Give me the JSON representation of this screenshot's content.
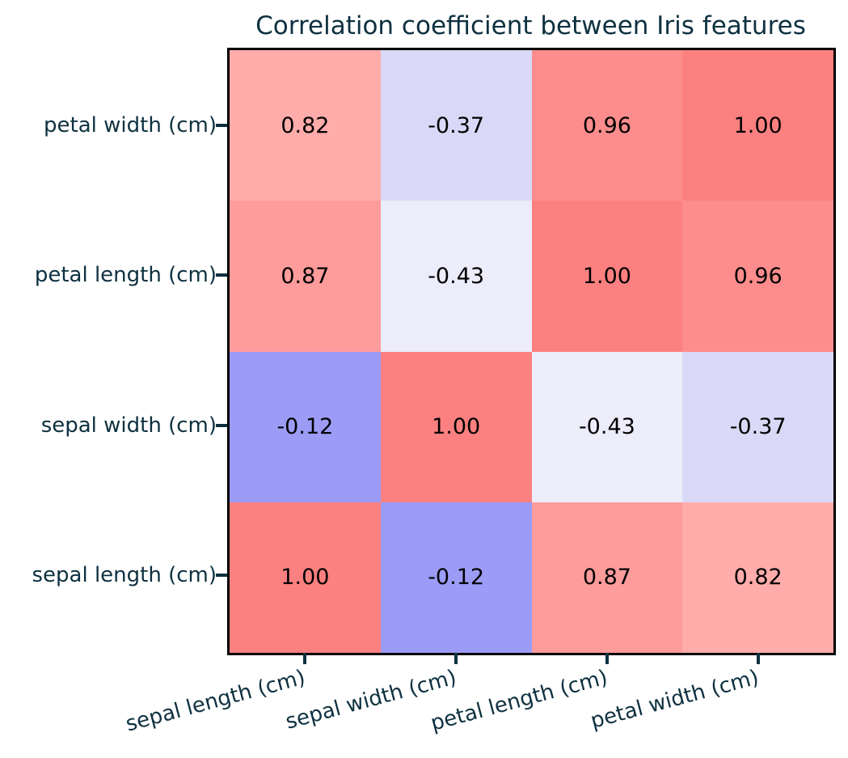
{
  "title": "Correlation coefficient between Iris features",
  "palette": {
    "label_color": "#0e3140",
    "cell_text_color": "#000000",
    "axes_border_color": "#000000",
    "background": "#ffffff",
    "positive_strong": "#fc8080",
    "negative_strong": "#9c9cf7"
  },
  "chart_data": {
    "type": "heatmap",
    "title": "Correlation coefficient between Iris features",
    "x_labels": [
      "sepal length (cm)",
      "sepal width (cm)",
      "petal length (cm)",
      "petal width (cm)"
    ],
    "y_labels": [
      "petal width (cm)",
      "petal length (cm)",
      "sepal width (cm)",
      "sepal length (cm)"
    ],
    "x_tick_rotation_deg": 15,
    "annotation_format": "2 decimals",
    "colormap": "diverging blue-white-red",
    "grid": "off",
    "legend": "none",
    "values": [
      [
        0.82,
        -0.37,
        0.96,
        1.0
      ],
      [
        0.87,
        -0.43,
        1.0,
        0.96
      ],
      [
        -0.12,
        1.0,
        -0.43,
        -0.37
      ],
      [
        1.0,
        -0.12,
        0.87,
        0.82
      ]
    ],
    "cells": [
      {
        "label": "0.82",
        "value": 0.82,
        "color": "#ffacaa"
      },
      {
        "label": "-0.37",
        "value": -0.37,
        "color": "#d9d9f7"
      },
      {
        "label": "0.96",
        "value": 0.96,
        "color": "#fd8c8c"
      },
      {
        "label": "1.00",
        "value": 1.0,
        "color": "#fc8080"
      },
      {
        "label": "0.87",
        "value": 0.87,
        "color": "#fe9b9b"
      },
      {
        "label": "-0.43",
        "value": -0.43,
        "color": "#ececfa"
      },
      {
        "label": "1.00",
        "value": 1.0,
        "color": "#fc8080"
      },
      {
        "label": "0.96",
        "value": 0.96,
        "color": "#fd8c8c"
      },
      {
        "label": "-0.12",
        "value": -0.12,
        "color": "#9c9cf7"
      },
      {
        "label": "1.00",
        "value": 1.0,
        "color": "#fc8080"
      },
      {
        "label": "-0.43",
        "value": -0.43,
        "color": "#ececfa"
      },
      {
        "label": "-0.37",
        "value": -0.37,
        "color": "#d9d9f7"
      },
      {
        "label": "1.00",
        "value": 1.0,
        "color": "#fc8080"
      },
      {
        "label": "-0.12",
        "value": -0.12,
        "color": "#9c9cf7"
      },
      {
        "label": "0.87",
        "value": 0.87,
        "color": "#fe9b9b"
      },
      {
        "label": "0.82",
        "value": 0.82,
        "color": "#ffacaa"
      }
    ]
  }
}
